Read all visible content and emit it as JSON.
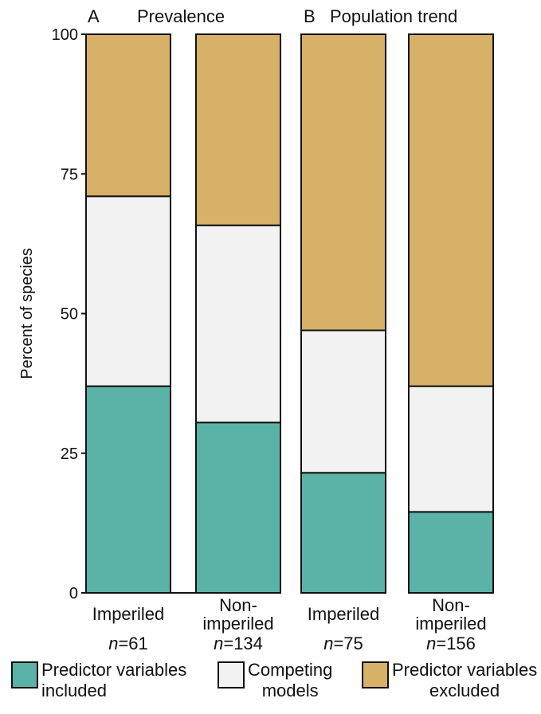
{
  "chart_data": {
    "type": "bar",
    "stacked": true,
    "ylabel": "Percent of species",
    "ylim": [
      0,
      100
    ],
    "yticks": [
      0,
      25,
      50,
      75,
      100
    ],
    "grid": false,
    "legend_placement": "bottom",
    "panels": [
      {
        "letter": "A",
        "title": "Prevalence",
        "groups": [
          {
            "label_lines": [
              "Imperiled"
            ],
            "n_prefix": "n",
            "n_suffix": "=61",
            "values": {
              "included": 37,
              "competing": 34,
              "excluded": 29
            }
          },
          {
            "label_lines": [
              "Non-",
              "imperiled"
            ],
            "n_prefix": "n",
            "n_suffix": "=134",
            "values": {
              "included": 30.5,
              "competing": 35.3,
              "excluded": 34.2
            }
          }
        ]
      },
      {
        "letter": "B",
        "title": "Population trend",
        "groups": [
          {
            "label_lines": [
              "Imperiled"
            ],
            "n_prefix": "n",
            "n_suffix": "=75",
            "values": {
              "included": 21.5,
              "competing": 25.5,
              "excluded": 53
            }
          },
          {
            "label_lines": [
              "Non-",
              "imperiled"
            ],
            "n_prefix": "n",
            "n_suffix": "=156",
            "values": {
              "included": 14.5,
              "competing": 22.5,
              "excluded": 63
            }
          }
        ]
      }
    ],
    "series": [
      {
        "key": "included",
        "name": "Predictor variables included",
        "color": "#5bb3a8"
      },
      {
        "key": "competing",
        "name": "Competing models",
        "color": "#f2f2f2"
      },
      {
        "key": "excluded",
        "name": "Predictor variables excluded",
        "color": "#d6b167"
      }
    ]
  },
  "legend": {
    "items": [
      {
        "line1": "Predictor variables",
        "line2": "included"
      },
      {
        "line1": "Competing",
        "line2": "models"
      },
      {
        "line1": "Predictor variables",
        "line2": "excluded"
      }
    ]
  }
}
